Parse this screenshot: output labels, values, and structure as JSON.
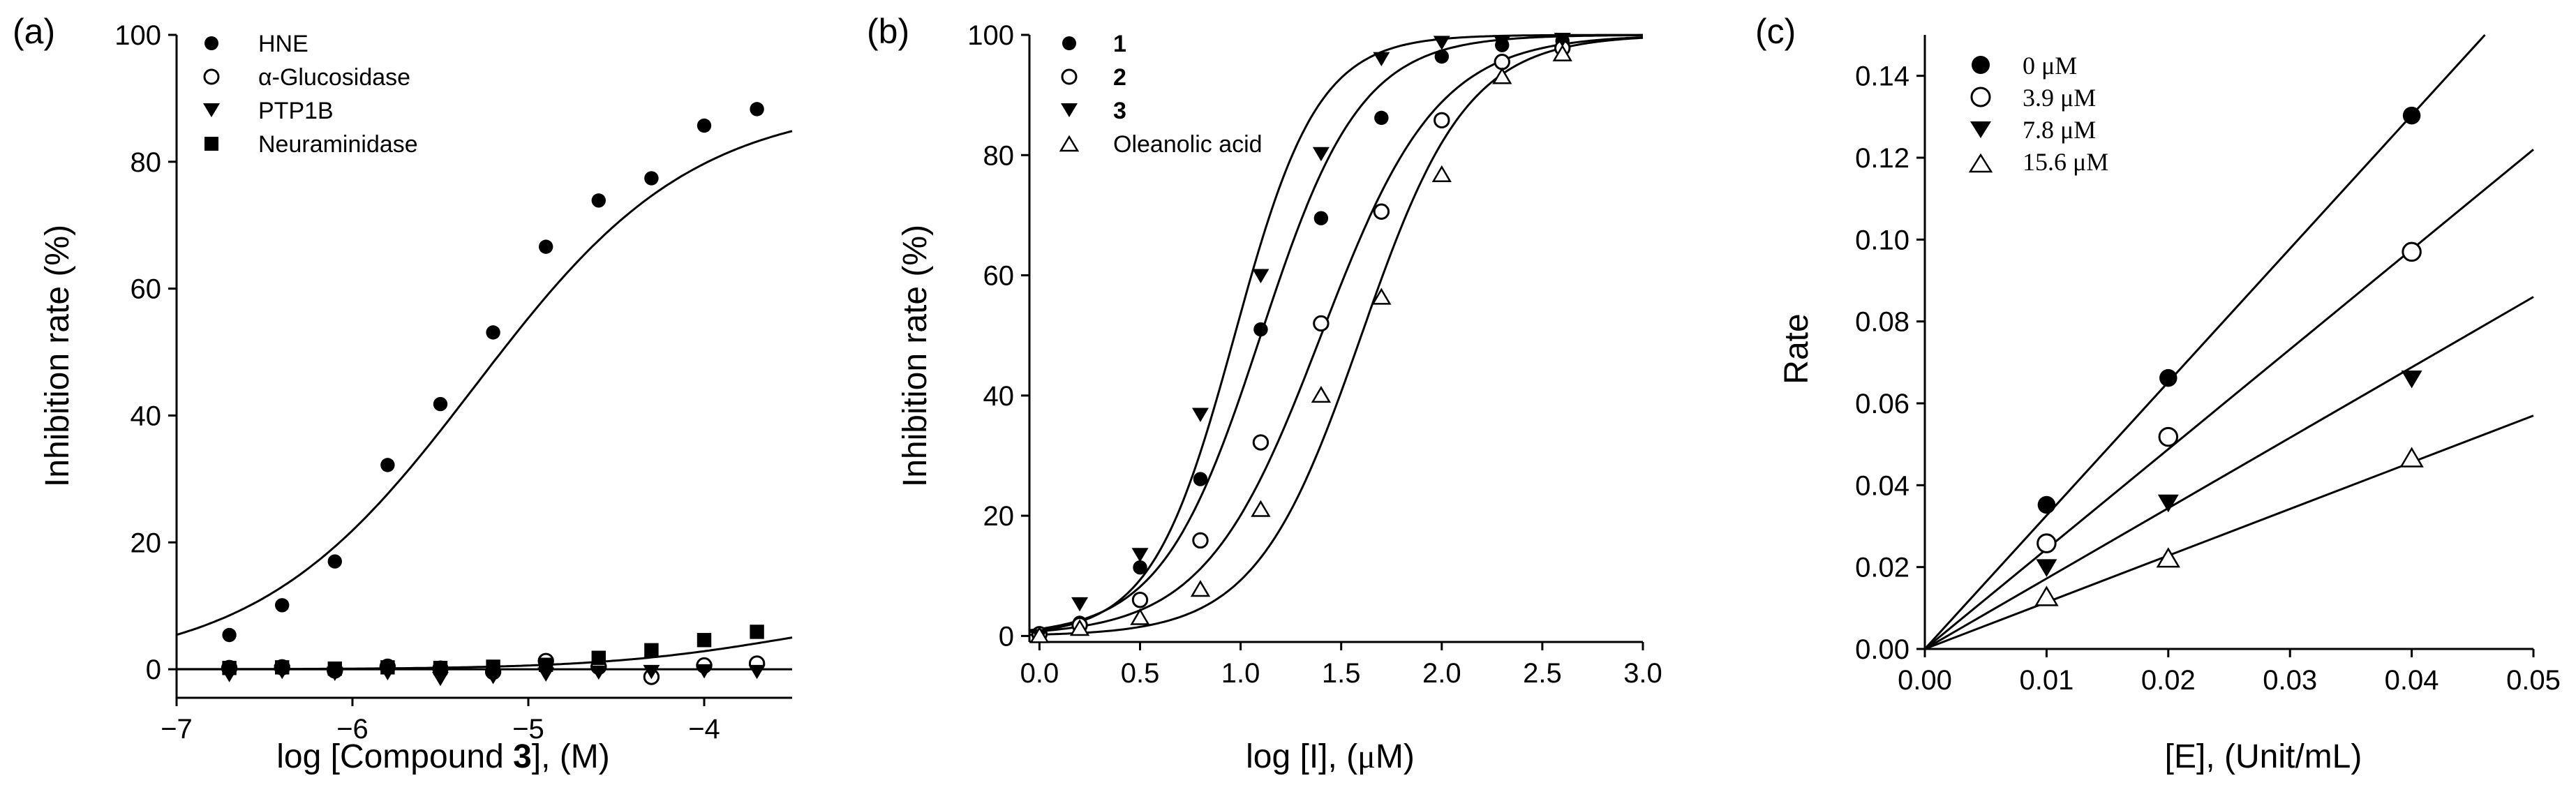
{
  "colors": {
    "ink": "#000000",
    "background": "#ffffff",
    "open_fill": "#ffffff"
  },
  "chart_data": [
    {
      "id": "a",
      "type": "scatter",
      "panel_label": "(a)",
      "title": "",
      "xlabel_parts": [
        "log [Compound ",
        "3",
        "], (M)"
      ],
      "ylabel": "Inhibition rate (%)",
      "xlim": [
        -7,
        -3.5
      ],
      "ylim": [
        -4.5,
        100
      ],
      "xticks": [
        -7,
        -6,
        -5,
        -4
      ],
      "xtick_labels": [
        "−7",
        "−6",
        "−5",
        "−4"
      ],
      "yticks": [
        0,
        20,
        40,
        60,
        80,
        100
      ],
      "ytick_labels": [
        "0",
        "20",
        "40",
        "60",
        "80",
        "100"
      ],
      "reference_line_y": 0,
      "legend_position": "top-left",
      "series": [
        {
          "name": "HNE",
          "marker": "filled-circle",
          "x": [
            -6.7,
            -6.4,
            -6.1,
            -5.8,
            -5.5,
            -5.2,
            -4.9,
            -4.6,
            -4.3,
            -4.0,
            -3.7
          ],
          "y": [
            5.4,
            10.1,
            17.0,
            32.2,
            41.8,
            53.1,
            66.6,
            73.9,
            77.4,
            85.7,
            88.3
          ],
          "fit": {
            "model": "sigmoid",
            "bottom": 0,
            "top": 89.5,
            "logEC50": -5.3,
            "hill": 0.7
          }
        },
        {
          "name": "α-Glucosidase",
          "marker": "open-circle",
          "x": [
            -6.7,
            -6.4,
            -6.1,
            -5.8,
            -5.5,
            -5.2,
            -4.9,
            -4.6,
            -4.3,
            -4.0,
            -3.7
          ],
          "y": [
            0.2,
            0.3,
            -0.2,
            0.4,
            0.1,
            -0.4,
            1.3,
            0.4,
            -1.2,
            0.6,
            0.9
          ],
          "fit": null
        },
        {
          "name": "PTP1B",
          "marker": "filled-triangle-down",
          "x": [
            -6.7,
            -6.4,
            -6.1,
            -5.8,
            -5.5,
            -5.2,
            -4.9,
            -4.6,
            -4.3,
            -4.0,
            -3.7
          ],
          "y": [
            -0.8,
            -0.3,
            -0.6,
            -0.5,
            -1.4,
            -1.1,
            -0.7,
            -0.4,
            -0.3,
            -0.2,
            -0.3
          ],
          "fit": null
        },
        {
          "name": "Neuraminidase",
          "marker": "filled-square",
          "x": [
            -6.7,
            -6.4,
            -6.1,
            -5.8,
            -5.5,
            -5.2,
            -4.9,
            -4.6,
            -4.3,
            -4.0,
            -3.7
          ],
          "y": [
            0.2,
            0.3,
            0.1,
            0.3,
            0.2,
            0.4,
            0.7,
            1.8,
            3.0,
            4.6,
            5.9
          ],
          "fit": {
            "model": "sigmoid",
            "bottom": 0,
            "top": 10,
            "logEC50": -3.5,
            "hill": 0.8
          }
        }
      ]
    },
    {
      "id": "b",
      "type": "scatter",
      "panel_label": "(b)",
      "title": "",
      "xlabel_parts": [
        "log [I], (",
        "μ",
        "M)"
      ],
      "ylabel": "Inhibition rate (%)",
      "xlim": [
        -0.05,
        3.0
      ],
      "ylim": [
        -1,
        100
      ],
      "xticks": [
        0.0,
        0.5,
        1.0,
        1.5,
        2.0,
        2.5,
        3.0
      ],
      "xtick_labels": [
        "0.0",
        "0.5",
        "1.0",
        "1.5",
        "2.0",
        "2.5",
        "3.0"
      ],
      "yticks": [
        0,
        20,
        40,
        60,
        80,
        100
      ],
      "ytick_labels": [
        "0",
        "20",
        "40",
        "60",
        "80",
        "100"
      ],
      "legend_position": "top-left",
      "series": [
        {
          "name": "1",
          "marker": "filled-circle",
          "bold_label": true,
          "x": [
            0.0,
            0.2,
            0.5,
            0.8,
            1.1,
            1.4,
            1.7,
            2.0,
            2.3,
            2.6
          ],
          "y": [
            0.0,
            2.2,
            11.4,
            26.1,
            51.0,
            69.5,
            86.2,
            96.4,
            98.3,
            99.0
          ],
          "fit": {
            "model": "sigmoid",
            "bottom": 0,
            "top": 100,
            "logEC50": 1.1,
            "hill": 1.75
          }
        },
        {
          "name": "2",
          "marker": "open-circle",
          "bold_label": true,
          "x": [
            0.0,
            0.2,
            0.5,
            0.8,
            1.1,
            1.4,
            1.7,
            2.0,
            2.3,
            2.6
          ],
          "y": [
            0.3,
            1.8,
            6.0,
            15.9,
            32.2,
            52.0,
            70.6,
            85.8,
            95.5,
            97.8
          ],
          "fit": {
            "model": "sigmoid",
            "bottom": 0,
            "top": 100,
            "logEC50": 1.4,
            "hill": 1.5
          }
        },
        {
          "name": "3",
          "marker": "filled-triangle-down",
          "bold_label": true,
          "x": [
            0.0,
            0.2,
            0.5,
            0.8,
            1.1,
            1.4,
            1.7,
            2.0,
            2.3,
            2.6
          ],
          "y": [
            0.1,
            5.4,
            13.6,
            36.9,
            60.0,
            80.3,
            96.1,
            98.8,
            98.8,
            99.3
          ],
          "fit": {
            "model": "sigmoid",
            "bottom": 0,
            "top": 100,
            "logEC50": 0.97,
            "hill": 2.1
          }
        },
        {
          "name": "Oleanolic acid",
          "marker": "open-triangle-up",
          "bold_label": false,
          "x": [
            0.0,
            0.2,
            0.5,
            0.8,
            1.1,
            1.4,
            1.7,
            2.0,
            2.3,
            2.6
          ],
          "y": [
            0.0,
            1.2,
            3.0,
            7.7,
            21.0,
            40.0,
            56.3,
            76.7,
            93.0,
            96.8
          ],
          "fit": {
            "model": "sigmoid",
            "bottom": 0,
            "top": 100,
            "logEC50": 1.6,
            "hill": 1.65
          }
        }
      ]
    },
    {
      "id": "c",
      "type": "scatter",
      "panel_label": "(c)",
      "title": "",
      "xlabel": "[E], (Unit/mL)",
      "ylabel": "Rate",
      "xlim": [
        0.0,
        0.05
      ],
      "ylim": [
        0.0,
        0.15
      ],
      "xticks": [
        0.0,
        0.01,
        0.02,
        0.03,
        0.04,
        0.05
      ],
      "xtick_labels": [
        "0.00",
        "0.01",
        "0.02",
        "0.03",
        "0.04",
        "0.05"
      ],
      "yticks": [
        0.0,
        0.02,
        0.04,
        0.06,
        0.08,
        0.1,
        0.12,
        0.14
      ],
      "ytick_labels": [
        "0.00",
        "0.02",
        "0.04",
        "0.06",
        "0.08",
        "0.10",
        "0.12",
        "0.14"
      ],
      "legend_position": "top-left",
      "series": [
        {
          "name": "0 μM",
          "marker": "filled-circle",
          "x": [
            0.01,
            0.02,
            0.04
          ],
          "y": [
            0.0352,
            0.0662,
            0.1303
          ],
          "fit": {
            "model": "linear",
            "slope": 3.26
          }
        },
        {
          "name": "3.9 μM",
          "marker": "open-circle",
          "x": [
            0.01,
            0.02,
            0.04
          ],
          "y": [
            0.0258,
            0.0518,
            0.097
          ],
          "fit": {
            "model": "linear",
            "slope": 2.44
          }
        },
        {
          "name": "7.8 μM",
          "marker": "filled-triangle-down",
          "x": [
            0.01,
            0.02,
            0.04
          ],
          "y": [
            0.02,
            0.0358,
            0.0661
          ],
          "fit": {
            "model": "linear",
            "slope": 1.72
          }
        },
        {
          "name": "15.6 μM",
          "marker": "open-triangle-up",
          "x": [
            0.01,
            0.02,
            0.04
          ],
          "y": [
            0.0126,
            0.022,
            0.0465
          ],
          "fit": {
            "model": "linear",
            "slope": 1.14
          }
        }
      ]
    }
  ]
}
